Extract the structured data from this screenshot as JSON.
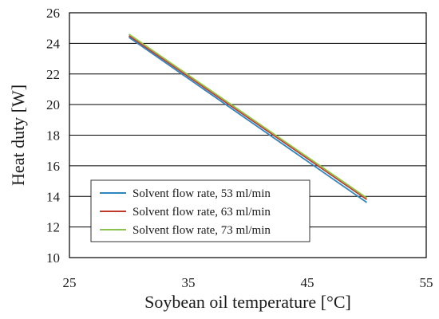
{
  "chart_data": {
    "type": "line",
    "xlabel": "Soybean oil temperature [°C]",
    "ylabel": "Heat duty [W]",
    "xlim": [
      25,
      55
    ],
    "ylim": [
      10,
      26
    ],
    "x_ticks": [
      "25",
      "35",
      "45",
      "55"
    ],
    "y_ticks": [
      "10",
      "12",
      "14",
      "16",
      "18",
      "20",
      "22",
      "24",
      "26"
    ],
    "grid": "horizontal",
    "legend_position": "bottom-left",
    "series": [
      {
        "name": "Solvent flow rate, 53 ml/min",
        "color": "#2e86c1",
        "x": [
          30,
          50
        ],
        "y": [
          24.4,
          13.6
        ]
      },
      {
        "name": "Solvent flow rate, 63 ml/min",
        "color": "#c0392b",
        "x": [
          30,
          50
        ],
        "y": [
          24.5,
          13.8
        ]
      },
      {
        "name": "Solvent flow rate, 73 ml/min",
        "color": "#8bc34a",
        "x": [
          30,
          50
        ],
        "y": [
          24.6,
          13.9
        ]
      }
    ]
  }
}
